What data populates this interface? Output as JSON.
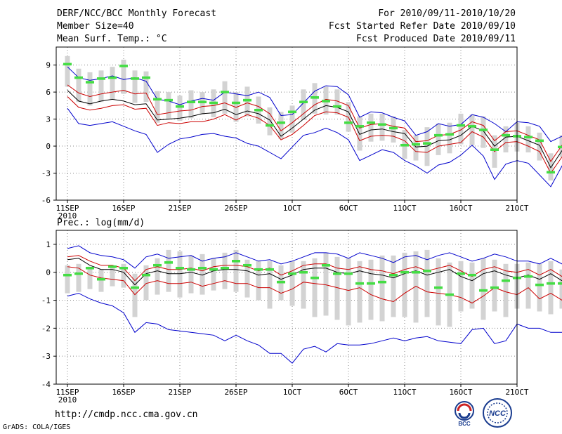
{
  "header": {
    "title": "DERF/NCC/BCC Monthly Forecast",
    "member_size": "Member Size=40",
    "variable": "Mean Surf. Temp.: °C",
    "period": "For 2010/09/11-2010/10/20",
    "refer_date": "Fcst Started Refer Date 2010/09/10",
    "produced_date": "Fcst Produced Date 2010/09/11"
  },
  "footer": {
    "url": "http://cmdp.ncc.cma.gov.cn",
    "credit": "GrADS: COLA/IGES",
    "logo_bcc": "BCC",
    "logo_ncc": "NCC"
  },
  "colors": {
    "spread": "#d3d3d3",
    "mean": "#000000",
    "inner": "#cc0000",
    "outer": "#0000cc",
    "obs": "#44dd44",
    "grid": "#888888"
  },
  "chart_data": [
    {
      "type": "line",
      "title": "Mean Surf. Temp.: °C",
      "x_start_day": 1,
      "x_tick_labels": [
        "11SEP",
        "16SEP",
        "21SEP",
        "26SEP",
        "1OCT",
        "6OCT",
        "11OCT",
        "16OCT",
        "21OCT"
      ],
      "x_year_label": "2010",
      "ylim": [
        -6,
        11
      ],
      "yticks": [
        -6,
        -3,
        0,
        3,
        6,
        9
      ],
      "series": [
        {
          "name": "upper-bound",
          "color": "#0000cc",
          "values": [
            8.8,
            7.6,
            7.3,
            7.5,
            7.8,
            7.4,
            7.6,
            7.2,
            5.2,
            5.0,
            4.6,
            5.0,
            5.3,
            5.1,
            6.0,
            5.8,
            5.6,
            6.0,
            5.4,
            3.4,
            3.5,
            4.8,
            6.1,
            6.7,
            6.6,
            5.7,
            3.2,
            3.8,
            3.7,
            3.2,
            2.8,
            1.2,
            1.6,
            2.5,
            2.2,
            2.4,
            3.5,
            3.2,
            2.5,
            1.6,
            2.7,
            2.6,
            2.2,
            0.5,
            1.1,
            0.9
          ]
        },
        {
          "name": "upper-mid",
          "color": "#cc0000",
          "values": [
            6.8,
            5.9,
            5.5,
            5.8,
            6.0,
            6.2,
            5.8,
            5.9,
            3.5,
            3.7,
            3.9,
            4.0,
            4.4,
            4.5,
            4.8,
            4.3,
            4.8,
            4.4,
            3.6,
            1.7,
            2.6,
            3.6,
            4.6,
            5.2,
            5.0,
            4.5,
            2.0,
            2.4,
            2.5,
            2.2,
            2.0,
            0.5,
            0.6,
            1.2,
            1.3,
            1.8,
            2.7,
            2.3,
            0.6,
            1.6,
            1.7,
            1.2,
            0.7,
            -1.7,
            0.1,
            -0.3
          ]
        },
        {
          "name": "ensemble-mean",
          "color": "#000000",
          "values": [
            6.2,
            5.0,
            4.7,
            5.0,
            5.2,
            5.0,
            4.6,
            4.7,
            2.9,
            3.0,
            3.1,
            3.3,
            3.6,
            3.7,
            4.1,
            3.5,
            3.9,
            3.6,
            2.9,
            1.1,
            2.0,
            3.0,
            4.0,
            4.5,
            4.3,
            3.8,
            1.3,
            1.8,
            1.9,
            1.6,
            1.4,
            -0.1,
            0.0,
            0.6,
            0.7,
            1.2,
            2.2,
            1.7,
            0.0,
            1.0,
            1.1,
            0.6,
            0.1,
            -2.4,
            -0.5,
            -0.9
          ]
        },
        {
          "name": "lower-mid",
          "color": "#cc0000",
          "values": [
            5.5,
            4.3,
            4.0,
            4.2,
            4.5,
            4.6,
            4.1,
            4.2,
            2.3,
            2.6,
            2.5,
            2.7,
            2.7,
            3.0,
            3.5,
            2.9,
            3.5,
            3.1,
            2.3,
            0.7,
            1.3,
            2.3,
            3.4,
            3.8,
            3.7,
            3.2,
            0.6,
            1.1,
            1.2,
            1.1,
            0.6,
            -0.6,
            -0.7,
            0.0,
            0.2,
            0.4,
            1.6,
            1.0,
            -0.6,
            0.4,
            0.5,
            0.0,
            -0.6,
            -3.0,
            -1.2,
            -1.5
          ]
        },
        {
          "name": "lower-bound",
          "color": "#0000cc",
          "values": [
            4.2,
            2.5,
            2.3,
            2.5,
            2.7,
            2.2,
            1.7,
            1.3,
            -0.7,
            0.2,
            0.8,
            1.0,
            1.3,
            1.4,
            1.1,
            0.9,
            0.3,
            0.0,
            -0.7,
            -1.4,
            -0.1,
            1.2,
            1.5,
            2.0,
            1.5,
            0.7,
            -1.6,
            -1.0,
            -0.4,
            -0.7,
            -1.6,
            -2.2,
            -3.0,
            -2.1,
            -1.8,
            -1.0,
            0.1,
            -1.1,
            -3.7,
            -2.0,
            -1.6,
            -1.9,
            -3.2,
            -4.5,
            -2.2,
            -3.2
          ]
        },
        {
          "name": "observed",
          "color": "#44dd44",
          "values": [
            9.1,
            7.6,
            7.1,
            7.5,
            7.6,
            8.9,
            7.5,
            7.6,
            5.2,
            5.1,
            4.4,
            4.9,
            4.9,
            4.8,
            6.0,
            4.8,
            5.1,
            4.0,
            2.3,
            2.6,
            3.8,
            4.9,
            5.4,
            5.0,
            4.4,
            2.6,
            2.2,
            2.6,
            2.4,
            2.0,
            0.1,
            0.2,
            0.3,
            1.2,
            1.3,
            2.3,
            2.2,
            1.8,
            -0.4,
            1.2,
            1.1,
            1.0,
            0.6,
            -2.9,
            -0.1,
            -0.5
          ]
        },
        {
          "name": "spread-top",
          "color": "#d3d3d3",
          "values": [
            10.0,
            8.6,
            8.2,
            8.4,
            8.8,
            9.6,
            8.4,
            8.3,
            6.1,
            6.0,
            5.6,
            6.2,
            6.0,
            6.3,
            7.2,
            6.0,
            6.6,
            5.5,
            4.3,
            3.8,
            4.5,
            6.3,
            7.0,
            6.6,
            6.3,
            4.9,
            3.3,
            3.6,
            3.6,
            3.3,
            1.8,
            1.2,
            2.1,
            2.5,
            2.6,
            3.6,
            3.5,
            3.3,
            1.2,
            2.2,
            2.6,
            2.2,
            1.5,
            -0.8,
            1.2,
            0.5
          ]
        },
        {
          "name": "spread-bottom",
          "color": "#d3d3d3",
          "values": [
            6.6,
            4.9,
            4.5,
            4.9,
            5.2,
            5.8,
            4.8,
            4.9,
            2.6,
            3.0,
            2.8,
            3.1,
            3.5,
            3.2,
            3.6,
            2.7,
            3.3,
            2.5,
            1.2,
            0.8,
            1.5,
            2.9,
            3.6,
            3.5,
            3.5,
            1.6,
            -0.5,
            0.5,
            0.6,
            0.4,
            -1.4,
            -1.6,
            -2.2,
            -1.0,
            -0.8,
            0.2,
            0.1,
            -0.2,
            -2.4,
            -0.7,
            -0.6,
            -0.7,
            -1.6,
            -3.8,
            -1.2,
            -1.5
          ]
        }
      ]
    },
    {
      "type": "line",
      "title": "Prec.: log(mm/d)",
      "x_start_day": 1,
      "x_tick_labels": [
        "11SEP",
        "16SEP",
        "21SEP",
        "26SEP",
        "1OCT",
        "6OCT",
        "11OCT",
        "16OCT",
        "21OCT"
      ],
      "x_year_label": "2010",
      "ylim": [
        -4,
        1.5
      ],
      "yticks": [
        -4,
        -3,
        -2,
        -1,
        0,
        1
      ],
      "series": [
        {
          "name": "upper-bound",
          "color": "#0000cc",
          "values": [
            0.85,
            0.95,
            0.7,
            0.6,
            0.55,
            0.45,
            0.15,
            0.55,
            0.65,
            0.5,
            0.55,
            0.6,
            0.4,
            0.5,
            0.55,
            0.7,
            0.55,
            0.4,
            0.45,
            0.3,
            0.4,
            0.55,
            0.7,
            0.7,
            0.65,
            0.5,
            0.7,
            0.6,
            0.5,
            0.35,
            0.55,
            0.6,
            0.45,
            0.6,
            0.7,
            0.55,
            0.4,
            0.5,
            0.65,
            0.55,
            0.4,
            0.4,
            0.3,
            0.5,
            0.3,
            0.35
          ]
        },
        {
          "name": "upper-mid",
          "color": "#cc0000",
          "values": [
            0.55,
            0.6,
            0.4,
            0.25,
            0.25,
            0.15,
            -0.3,
            0.1,
            0.2,
            0.1,
            0.1,
            0.15,
            0.05,
            0.2,
            0.25,
            0.25,
            0.2,
            0.05,
            0.15,
            -0.1,
            0.05,
            0.25,
            0.3,
            0.3,
            0.15,
            0.1,
            0.2,
            0.1,
            0.05,
            -0.05,
            0.1,
            0.2,
            0.05,
            0.15,
            0.25,
            0.05,
            -0.15,
            0.1,
            0.2,
            0.05,
            0.0,
            0.1,
            -0.1,
            0.1,
            -0.15,
            -0.1
          ]
        },
        {
          "name": "ensemble-mean",
          "color": "#000000",
          "values": [
            0.45,
            0.5,
            0.25,
            0.1,
            0.1,
            0.0,
            -0.45,
            -0.05,
            0.05,
            -0.05,
            -0.05,
            0.0,
            -0.1,
            0.05,
            0.1,
            0.1,
            0.05,
            -0.1,
            -0.05,
            -0.25,
            -0.1,
            0.1,
            0.15,
            0.15,
            0.0,
            -0.05,
            0.05,
            -0.05,
            -0.1,
            -0.2,
            -0.05,
            0.05,
            -0.1,
            0.0,
            0.1,
            -0.15,
            -0.3,
            -0.05,
            0.05,
            -0.1,
            -0.2,
            -0.1,
            -0.25,
            -0.05,
            -0.3,
            -0.3
          ]
        },
        {
          "name": "lower-mid",
          "color": "#cc0000",
          "values": [
            0.2,
            0.15,
            -0.1,
            -0.2,
            -0.25,
            -0.3,
            -0.8,
            -0.4,
            -0.3,
            -0.4,
            -0.4,
            -0.35,
            -0.5,
            -0.4,
            -0.3,
            -0.4,
            -0.4,
            -0.55,
            -0.55,
            -0.75,
            -0.6,
            -0.35,
            -0.4,
            -0.45,
            -0.55,
            -0.65,
            -0.55,
            -0.8,
            -0.95,
            -1.05,
            -0.75,
            -0.5,
            -0.7,
            -0.75,
            -0.8,
            -0.9,
            -1.1,
            -0.85,
            -0.55,
            -0.7,
            -0.8,
            -0.55,
            -0.95,
            -0.75,
            -1.0,
            -0.9
          ]
        },
        {
          "name": "lower-bound",
          "color": "#0000cc",
          "values": [
            -0.85,
            -0.75,
            -0.95,
            -1.1,
            -1.2,
            -1.45,
            -2.15,
            -1.8,
            -1.85,
            -2.05,
            -2.1,
            -2.15,
            -2.2,
            -2.25,
            -2.45,
            -2.25,
            -2.45,
            -2.6,
            -2.9,
            -2.9,
            -3.25,
            -2.75,
            -2.65,
            -2.85,
            -2.55,
            -2.6,
            -2.6,
            -2.55,
            -2.45,
            -2.35,
            -2.45,
            -2.35,
            -2.3,
            -2.45,
            -2.5,
            -2.55,
            -2.05,
            -2.0,
            -2.55,
            -2.45,
            -1.85,
            -2.0,
            -2.0,
            -2.15,
            -2.15,
            -2.2
          ]
        },
        {
          "name": "observed",
          "color": "#44dd44",
          "values": [
            -0.1,
            -0.05,
            0.15,
            -0.25,
            0.2,
            0.15,
            -0.55,
            -0.1,
            0.25,
            0.35,
            0.15,
            0.1,
            0.15,
            0.1,
            0.15,
            0.4,
            0.25,
            0.1,
            0.1,
            -0.35,
            -0.05,
            0.0,
            -0.2,
            0.25,
            -0.05,
            -0.05,
            -0.4,
            -0.4,
            -0.35,
            -0.1,
            0.0,
            0.0,
            0.05,
            -0.55,
            -0.8,
            -0.05,
            -0.1,
            -0.65,
            -0.55,
            -0.3,
            -0.2,
            -0.15,
            -0.45,
            -0.4,
            -0.4,
            -0.4
          ]
        },
        {
          "name": "spread-top",
          "color": "#d3d3d3",
          "values": [
            0.25,
            0.3,
            0.2,
            0.1,
            0.25,
            0.3,
            -0.05,
            0.25,
            0.5,
            0.8,
            0.75,
            0.6,
            0.65,
            0.5,
            0.7,
            0.8,
            0.45,
            0.4,
            0.4,
            0.25,
            0.4,
            0.4,
            0.5,
            0.7,
            0.55,
            0.5,
            0.4,
            0.45,
            0.6,
            0.6,
            0.7,
            0.75,
            0.8,
            0.5,
            0.35,
            0.4,
            0.35,
            0.5,
            0.45,
            0.3,
            0.3,
            0.35,
            0.3,
            0.4,
            0.1,
            0.1
          ]
        },
        {
          "name": "spread-bottom",
          "color": "#d3d3d3",
          "values": [
            -0.75,
            -0.7,
            -0.6,
            -0.7,
            -0.5,
            -0.55,
            -1.6,
            -1.0,
            -0.8,
            -0.7,
            -0.9,
            -0.75,
            -0.8,
            -0.65,
            -0.6,
            -0.7,
            -0.9,
            -1.0,
            -1.3,
            -1.0,
            -1.2,
            -1.3,
            -1.6,
            -1.55,
            -1.7,
            -1.9,
            -1.8,
            -1.7,
            -1.75,
            -1.6,
            -1.6,
            -1.8,
            -1.6,
            -1.9,
            -1.95,
            -1.4,
            -1.3,
            -1.7,
            -1.4,
            -1.6,
            -1.3,
            -1.3,
            -1.4,
            -1.5,
            -1.3,
            -1.4
          ]
        }
      ]
    }
  ]
}
